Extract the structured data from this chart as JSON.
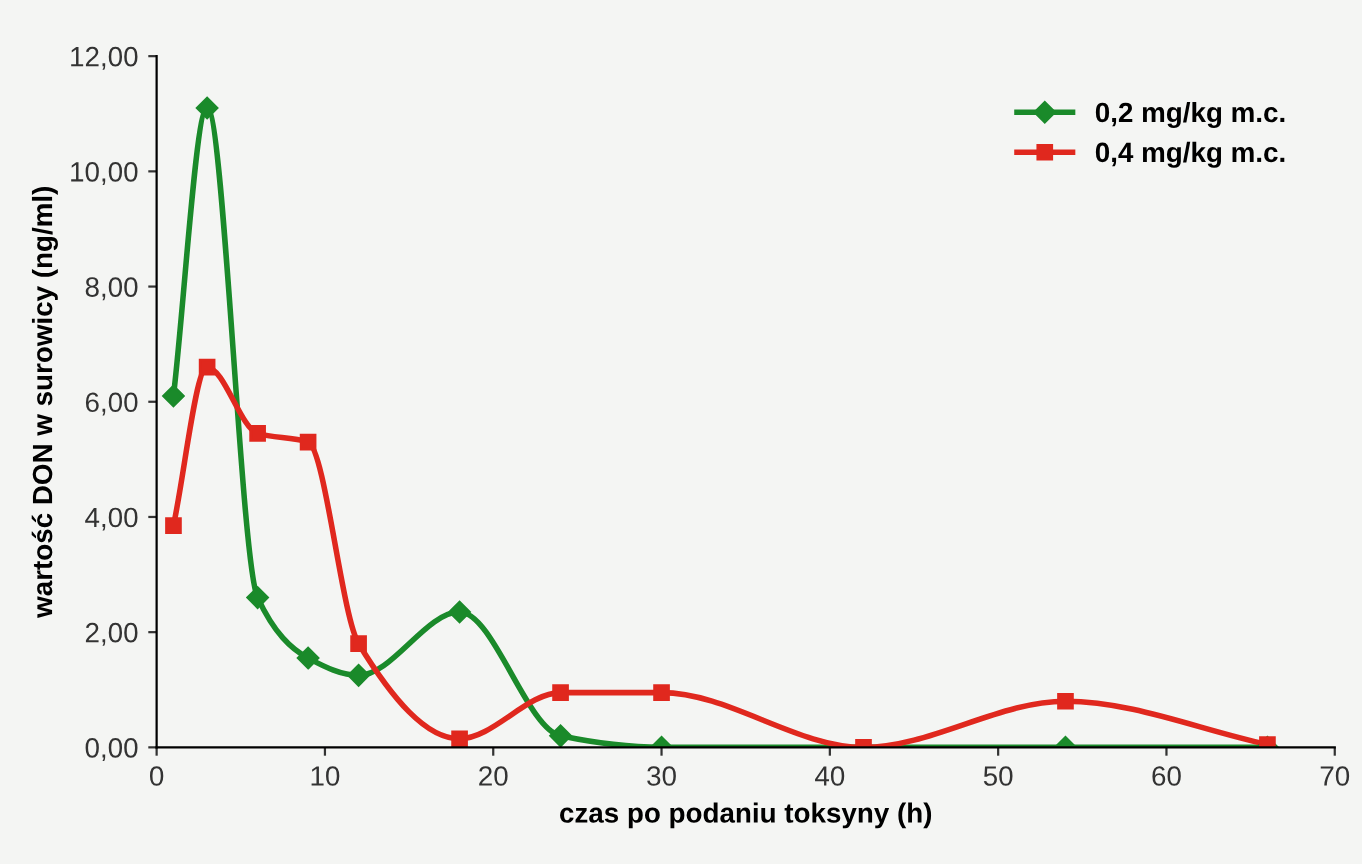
{
  "chart_data": {
    "type": "line",
    "xlabel": "czas po podaniu toksyny (h)",
    "ylabel": "wartość DON w surowicy (ng/ml)",
    "xlim": [
      0,
      70
    ],
    "xticks": [
      0,
      10,
      20,
      30,
      40,
      50,
      60,
      70
    ],
    "ylim": [
      0,
      12
    ],
    "yticks": [
      {
        "value": 0,
        "label": "0,00"
      },
      {
        "value": 2,
        "label": "2,00"
      },
      {
        "value": 4,
        "label": "4,00"
      },
      {
        "value": 6,
        "label": "6,00"
      },
      {
        "value": 8,
        "label": "8,00"
      },
      {
        "value": 10,
        "label": "10,00"
      },
      {
        "value": 12,
        "label": "12,00"
      }
    ],
    "grid": false,
    "legend": "top right",
    "series": [
      {
        "name": "0,2 mg/kg m.c.",
        "color": "#1a8a2a",
        "marker": "diamond",
        "x": [
          1,
          3,
          6,
          9,
          12,
          18,
          24,
          30,
          54,
          66
        ],
        "values": [
          6.1,
          11.1,
          2.6,
          1.55,
          1.25,
          2.35,
          0.2,
          0,
          0,
          0
        ]
      },
      {
        "name": "0,4 mg/kg m.c.",
        "color": "#e0281e",
        "marker": "square",
        "x": [
          1,
          3,
          6,
          9,
          12,
          18,
          24,
          30,
          42,
          54,
          66
        ],
        "values": [
          3.85,
          6.6,
          5.45,
          5.3,
          1.8,
          0.15,
          0.95,
          0.95,
          0,
          0.8,
          0.05
        ]
      }
    ]
  }
}
